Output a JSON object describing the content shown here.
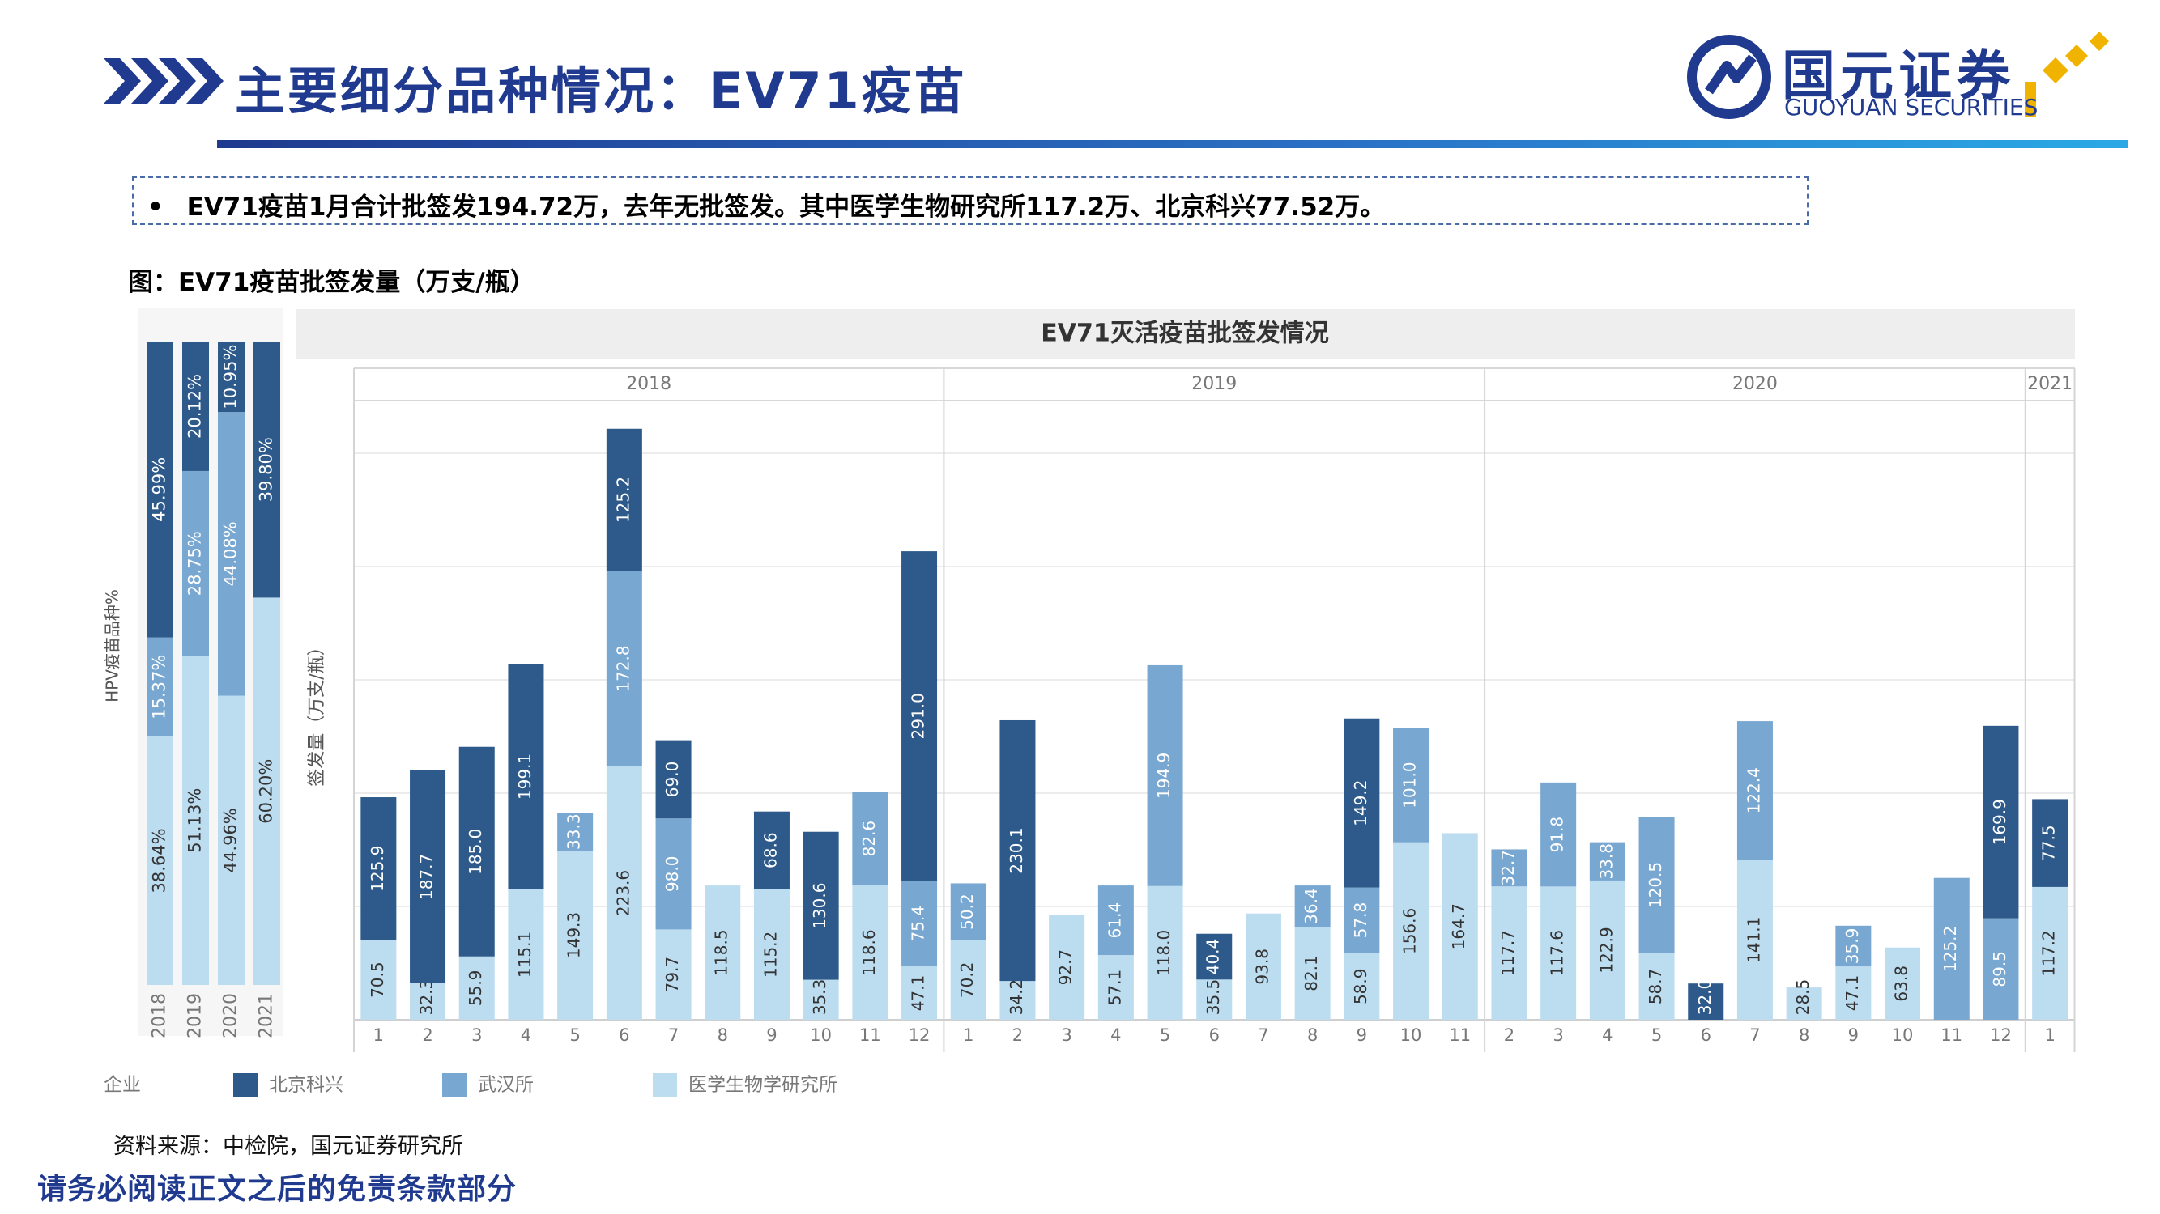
{
  "header": {
    "title": "主要细分品种情况：EV71疫苗",
    "logo_cn": "国元证券",
    "logo_en": "GUOYUAN SECURITIES"
  },
  "summary": {
    "bullet": "•",
    "text": "EV71疫苗1月合计批签发194.72万，去年无批签发。其中医学生物研究所117.2万、北京科兴77.52万。"
  },
  "figure_caption": "图：EV71疫苗批签发量（万支/瓶）",
  "source_note": "资料来源：中检院，国元证券研究所",
  "disclaimer": "请务必阅读正文之后的免责条款部分",
  "colors": {
    "dark": "#2d5a8a",
    "mid": "#78a7d1",
    "light": "#bcdcf0",
    "brand": "#1f3a8f"
  },
  "chart_data": [
    {
      "type": "bar",
      "stacked": "percent",
      "ylabel": "HPV疫苗品种%",
      "categories": [
        "2018",
        "2019",
        "2020",
        "2021"
      ],
      "series": [
        {
          "name": "医学生物学研究所",
          "color": "#bcdcf0",
          "values": [
            38.64,
            51.13,
            44.96,
            60.2
          ],
          "labels": [
            "38.64%",
            "51.13%",
            "44.96%",
            "60.20%"
          ]
        },
        {
          "name": "武汉所",
          "color": "#78a7d1",
          "values": [
            15.37,
            28.75,
            44.08,
            0
          ],
          "labels": [
            "15.37%",
            "28.75%",
            "44.08%",
            ""
          ]
        },
        {
          "name": "北京科兴",
          "color": "#2d5a8a",
          "values": [
            45.99,
            20.12,
            10.95,
            39.8
          ],
          "labels": [
            "45.99%",
            "20.12%",
            "10.95%",
            "39.80%"
          ]
        }
      ]
    },
    {
      "type": "bar",
      "stacked": true,
      "title": "EV71灭活疫苗批签发情况",
      "ylabel": "签发量（万支/瓶）",
      "legend": {
        "title": "企业",
        "position": "bottom"
      },
      "groups": [
        "2018",
        "2019",
        "2020",
        "2021"
      ],
      "bars": [
        {
          "group": "2018",
          "month": "1",
          "light": 70.5,
          "mid": 0,
          "dark": 125.9
        },
        {
          "group": "2018",
          "month": "2",
          "light": 32.3,
          "mid": 0,
          "dark": 187.7
        },
        {
          "group": "2018",
          "month": "3",
          "light": 55.9,
          "mid": 0,
          "dark": 185.0
        },
        {
          "group": "2018",
          "month": "4",
          "light": 115.1,
          "mid": 0,
          "dark": 199.1
        },
        {
          "group": "2018",
          "month": "5",
          "light": 149.3,
          "mid": 33.3,
          "dark": 0
        },
        {
          "group": "2018",
          "month": "6",
          "light": 223.6,
          "mid": 172.8,
          "dark": 125.2
        },
        {
          "group": "2018",
          "month": "7",
          "light": 79.7,
          "mid": 98.0,
          "dark": 69.0
        },
        {
          "group": "2018",
          "month": "8",
          "light": 118.5,
          "mid": 0,
          "dark": 0
        },
        {
          "group": "2018",
          "month": "9",
          "light": 115.2,
          "mid": 0,
          "dark": 68.6
        },
        {
          "group": "2018",
          "month": "10",
          "light": 35.3,
          "mid": 0,
          "dark": 130.6
        },
        {
          "group": "2018",
          "month": "11",
          "light": 118.6,
          "mid": 82.6,
          "dark": 0
        },
        {
          "group": "2018",
          "month": "12",
          "light": 47.1,
          "mid": 75.4,
          "dark": 291.0
        },
        {
          "group": "2019",
          "month": "1",
          "light": 70.2,
          "mid": 50.2,
          "dark": 0
        },
        {
          "group": "2019",
          "month": "2",
          "light": 34.2,
          "mid": 0,
          "dark": 230.1
        },
        {
          "group": "2019",
          "month": "3",
          "light": 92.7,
          "mid": 0,
          "dark": 0
        },
        {
          "group": "2019",
          "month": "4",
          "light": 57.1,
          "mid": 61.4,
          "dark": 0
        },
        {
          "group": "2019",
          "month": "5",
          "light": 118.0,
          "mid": 194.9,
          "dark": 0
        },
        {
          "group": "2019",
          "month": "6",
          "light": 35.5,
          "mid": 0,
          "dark": 40.4
        },
        {
          "group": "2019",
          "month": "7",
          "light": 93.8,
          "mid": 0,
          "dark": 0
        },
        {
          "group": "2019",
          "month": "8",
          "light": 82.1,
          "mid": 36.4,
          "dark": 0
        },
        {
          "group": "2019",
          "month": "9",
          "light": 58.9,
          "mid": 57.8,
          "dark": 149.2
        },
        {
          "group": "2019",
          "month": "10",
          "light": 156.6,
          "mid": 101.0,
          "dark": 0
        },
        {
          "group": "2019",
          "month": "11",
          "light": 164.7,
          "mid": 0,
          "dark": 0
        },
        {
          "group": "2020",
          "month": "2",
          "light": 117.7,
          "mid": 32.7,
          "dark": 0
        },
        {
          "group": "2020",
          "month": "3",
          "light": 117.6,
          "mid": 91.8,
          "dark": 0
        },
        {
          "group": "2020",
          "month": "4",
          "light": 122.9,
          "mid": 33.8,
          "dark": 0
        },
        {
          "group": "2020",
          "month": "5",
          "light": 58.7,
          "mid": 120.5,
          "dark": 0
        },
        {
          "group": "2020",
          "month": "6",
          "light": 0,
          "mid": 0,
          "dark": 32.0
        },
        {
          "group": "2020",
          "month": "7",
          "light": 141.1,
          "mid": 122.4,
          "dark": 0
        },
        {
          "group": "2020",
          "month": "8",
          "light": 28.5,
          "mid": 0,
          "dark": 0
        },
        {
          "group": "2020",
          "month": "9",
          "light": 47.1,
          "mid": 35.9,
          "dark": 0
        },
        {
          "group": "2020",
          "month": "10",
          "light": 63.8,
          "mid": 0,
          "dark": 0
        },
        {
          "group": "2020",
          "month": "11",
          "light": 0,
          "mid": 125.2,
          "dark": 0
        },
        {
          "group": "2020",
          "month": "12",
          "light": 0,
          "mid": 89.5,
          "dark": 169.9
        },
        {
          "group": "2021",
          "month": "1",
          "light": 117.2,
          "mid": 0,
          "dark": 77.5
        }
      ],
      "series": [
        {
          "key": "dark",
          "name": "北京科兴",
          "color": "#2d5a8a"
        },
        {
          "key": "mid",
          "name": "武汉所",
          "color": "#78a7d1"
        },
        {
          "key": "light",
          "name": "医学生物学研究所",
          "color": "#bcdcf0"
        }
      ],
      "ylim": [
        0,
        520
      ],
      "grid": true
    }
  ]
}
